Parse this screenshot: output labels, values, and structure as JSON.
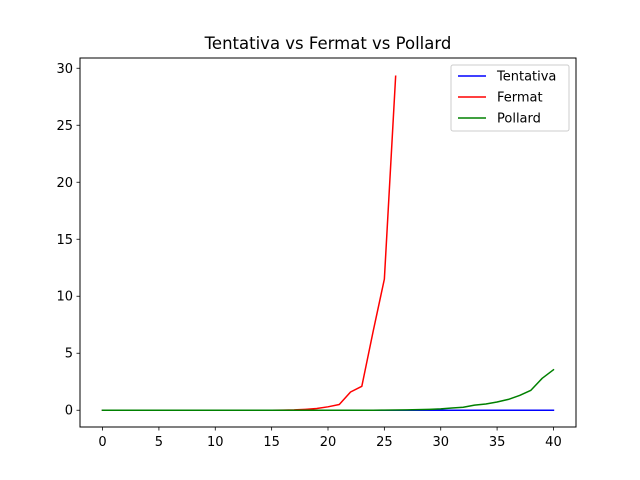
{
  "chart_data": {
    "type": "line",
    "title": "Tentativa vs Fermat vs Pollard",
    "xlabel": "",
    "ylabel": "",
    "xlim": [
      -2,
      42
    ],
    "ylim": [
      -1.47,
      30.9
    ],
    "xticks": [
      0,
      5,
      10,
      15,
      20,
      25,
      30,
      35,
      40
    ],
    "yticks": [
      0,
      5,
      10,
      15,
      20,
      25,
      30
    ],
    "grid": false,
    "legend": "top-right",
    "series": [
      {
        "name": "Tentativa",
        "color": "#0000ff",
        "x": [
          0,
          1,
          2,
          3,
          4,
          5,
          6,
          7,
          8,
          9,
          10,
          11,
          12,
          13,
          14,
          15,
          16,
          17,
          18,
          19,
          20,
          21,
          22,
          23,
          24,
          25,
          26,
          27,
          28,
          29,
          30,
          31,
          32,
          33,
          34,
          35,
          36,
          37,
          38,
          39,
          40
        ],
        "y": [
          0,
          0,
          0,
          0,
          0,
          0,
          0,
          0,
          0,
          0,
          0,
          0,
          0,
          0,
          0,
          0,
          0,
          0,
          0,
          0,
          0,
          0,
          0,
          0,
          0,
          0,
          0,
          0,
          0,
          0,
          0,
          0,
          0,
          0,
          0,
          0,
          0,
          0,
          0,
          0,
          0
        ]
      },
      {
        "name": "Fermat",
        "color": "#ff0000",
        "x": [
          0,
          1,
          2,
          3,
          4,
          5,
          6,
          7,
          8,
          9,
          10,
          11,
          12,
          13,
          14,
          15,
          16,
          17,
          18,
          19,
          20,
          21,
          22,
          23,
          24,
          25,
          26
        ],
        "y": [
          0,
          0,
          0,
          0,
          0,
          0,
          0,
          0,
          0,
          0,
          0,
          0,
          0,
          0,
          0,
          0,
          0.01,
          0.03,
          0.08,
          0.15,
          0.3,
          0.5,
          1.6,
          2.1,
          6.9,
          11.5,
          29.3
        ]
      },
      {
        "name": "Pollard",
        "color": "#008000",
        "x": [
          0,
          1,
          2,
          3,
          4,
          5,
          6,
          7,
          8,
          9,
          10,
          11,
          12,
          13,
          14,
          15,
          16,
          17,
          18,
          19,
          20,
          21,
          22,
          23,
          24,
          25,
          26,
          27,
          28,
          29,
          30,
          31,
          32,
          33,
          34,
          35,
          36,
          37,
          38,
          39,
          40
        ],
        "y": [
          0,
          0,
          0,
          0,
          0,
          0,
          0,
          0,
          0,
          0,
          0,
          0,
          0,
          0,
          0,
          0,
          0,
          0,
          0,
          0,
          0,
          0,
          0,
          0,
          0,
          0.01,
          0.02,
          0.03,
          0.05,
          0.08,
          0.12,
          0.2,
          0.26,
          0.45,
          0.55,
          0.72,
          0.95,
          1.3,
          1.75,
          2.8,
          3.55
        ]
      }
    ]
  }
}
